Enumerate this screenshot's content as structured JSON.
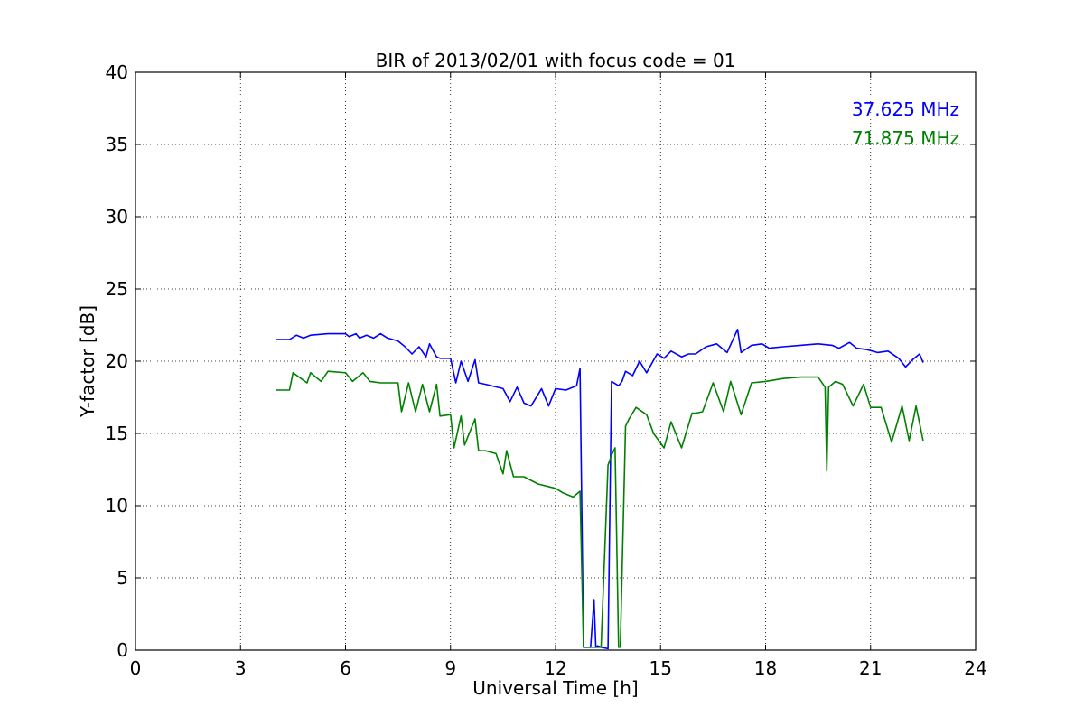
{
  "chart_data": {
    "type": "line",
    "title": "BIR of 2013/02/01 with focus code = 01",
    "xlabel": "Universal Time [h]",
    "ylabel": "Y-factor [dB]",
    "xlim": [
      0,
      24
    ],
    "ylim": [
      0,
      40
    ],
    "xticks": [
      0,
      3,
      6,
      9,
      12,
      15,
      18,
      21,
      24
    ],
    "yticks": [
      0,
      5,
      10,
      15,
      20,
      25,
      30,
      35,
      40
    ],
    "grid": true,
    "legend_position": "top-right",
    "series": [
      {
        "name": "37.625 MHz",
        "color": "#0000ff",
        "x": [
          4.0,
          4.4,
          4.6,
          4.8,
          5.0,
          5.5,
          6.0,
          6.1,
          6.3,
          6.4,
          6.6,
          6.8,
          7.0,
          7.2,
          7.5,
          7.7,
          7.9,
          8.1,
          8.3,
          8.4,
          8.6,
          8.7,
          9.0,
          9.15,
          9.3,
          9.5,
          9.7,
          9.8,
          10.0,
          10.5,
          10.7,
          10.9,
          11.1,
          11.3,
          11.6,
          11.8,
          12.0,
          12.3,
          12.6,
          12.7,
          12.8,
          12.9,
          13.0,
          13.1,
          13.15,
          13.2,
          13.3,
          13.5,
          13.6,
          13.8,
          13.9,
          14.0,
          14.2,
          14.4,
          14.6,
          14.9,
          15.1,
          15.3,
          15.6,
          15.8,
          16.0,
          16.3,
          16.6,
          16.9,
          17.2,
          17.3,
          17.6,
          17.9,
          18.1,
          18.5,
          19.0,
          19.5,
          19.9,
          20.1,
          20.4,
          20.6,
          20.9,
          21.2,
          21.5,
          21.8,
          22.0,
          22.2,
          22.4,
          22.5
        ],
        "values": [
          21.5,
          21.5,
          21.8,
          21.6,
          21.8,
          21.9,
          21.9,
          21.7,
          21.9,
          21.6,
          21.8,
          21.6,
          21.9,
          21.6,
          21.4,
          21.0,
          20.5,
          21.0,
          20.3,
          21.2,
          20.3,
          20.2,
          20.2,
          18.5,
          20.0,
          18.6,
          20.1,
          18.5,
          18.4,
          18.1,
          17.2,
          18.2,
          17.1,
          16.9,
          18.1,
          16.9,
          18.1,
          18.0,
          18.3,
          19.5,
          0.2,
          0.2,
          0.2,
          3.5,
          0.2,
          0.3,
          0.2,
          0.1,
          18.6,
          18.3,
          18.6,
          19.3,
          19.0,
          20.0,
          19.2,
          20.5,
          20.2,
          20.7,
          20.3,
          20.5,
          20.5,
          21.0,
          21.2,
          20.6,
          22.2,
          20.6,
          21.1,
          21.2,
          20.9,
          21.0,
          21.1,
          21.2,
          21.1,
          20.9,
          21.3,
          20.9,
          20.8,
          20.6,
          20.7,
          20.2,
          19.6,
          20.1,
          20.5,
          19.9
        ]
      },
      {
        "name": "71.875 MHz",
        "color": "#008000",
        "x": [
          4.0,
          4.4,
          4.5,
          4.9,
          5.0,
          5.3,
          5.5,
          6.0,
          6.2,
          6.5,
          6.7,
          7.0,
          7.5,
          7.6,
          7.8,
          8.0,
          8.2,
          8.4,
          8.6,
          8.7,
          9.0,
          9.1,
          9.3,
          9.4,
          9.7,
          9.8,
          10.0,
          10.3,
          10.5,
          10.6,
          10.8,
          11.1,
          11.5,
          12.0,
          12.2,
          12.5,
          12.7,
          12.8,
          13.0,
          13.3,
          13.5,
          13.6,
          13.7,
          13.8,
          13.85,
          14.0,
          14.1,
          14.3,
          14.6,
          14.8,
          15.1,
          15.3,
          15.6,
          15.9,
          16.0,
          16.2,
          16.5,
          16.8,
          17.0,
          17.3,
          17.6,
          18.0,
          18.5,
          19.0,
          19.5,
          19.7,
          19.75,
          19.8,
          20.0,
          20.2,
          20.5,
          20.8,
          21.0,
          21.3,
          21.6,
          21.9,
          22.1,
          22.3,
          22.5
        ],
        "values": [
          18.0,
          18.0,
          19.2,
          18.5,
          19.2,
          18.6,
          19.3,
          19.2,
          18.6,
          19.2,
          18.6,
          18.5,
          18.5,
          16.5,
          18.5,
          16.5,
          18.4,
          16.5,
          18.4,
          16.2,
          16.3,
          14.0,
          16.2,
          14.2,
          16.0,
          13.8,
          13.8,
          13.6,
          12.2,
          13.8,
          12.0,
          12.0,
          11.5,
          11.2,
          10.9,
          10.6,
          11.0,
          0.2,
          0.2,
          0.2,
          12.8,
          13.5,
          14.0,
          0.2,
          0.2,
          15.5,
          16.0,
          16.8,
          16.3,
          15.0,
          14.0,
          15.8,
          14.0,
          16.4,
          16.4,
          16.5,
          18.5,
          16.5,
          18.6,
          16.3,
          18.5,
          18.6,
          18.8,
          18.9,
          18.9,
          18.2,
          12.4,
          18.2,
          18.6,
          18.4,
          16.9,
          18.4,
          16.8,
          16.8,
          14.4,
          16.9,
          14.5,
          16.9,
          14.5
        ]
      }
    ]
  }
}
